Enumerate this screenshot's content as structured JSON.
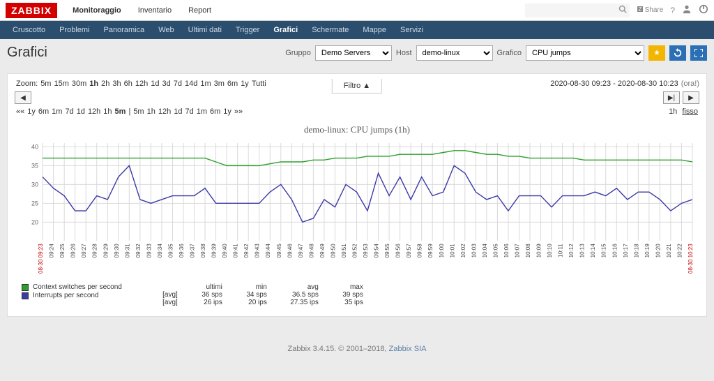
{
  "logo": "ZABBIX",
  "top_menu": [
    "Monitoraggio",
    "Inventario",
    "Report"
  ],
  "top_menu_active": 0,
  "share_label": "Share",
  "sub_menu": [
    "Cruscotto",
    "Problemi",
    "Panoramica",
    "Web",
    "Ultimi dati",
    "Trigger",
    "Grafici",
    "Schermate",
    "Mappe",
    "Servizi"
  ],
  "sub_menu_active": 6,
  "page_title": "Grafici",
  "filters": {
    "group_label": "Gruppo",
    "group_value": "Demo Servers",
    "host_label": "Host",
    "host_value": "demo-linux",
    "graph_label": "Grafico",
    "graph_value": "CPU jumps"
  },
  "filter_tab": "Filtro ▲",
  "zoom": {
    "label": "Zoom:",
    "items": [
      "5m",
      "15m",
      "30m",
      "1h",
      "2h",
      "3h",
      "6h",
      "12h",
      "1d",
      "3d",
      "7d",
      "14d",
      "1m",
      "3m",
      "6m",
      "1y",
      "Tutti"
    ],
    "bold": [
      3
    ],
    "time_range": "2020-08-30 09:23 - 2020-08-30 10:23",
    "time_suffix": "(ora!)"
  },
  "timenav": {
    "left": [
      "««",
      "1y",
      "6m",
      "1m",
      "7d",
      "1d",
      "12h",
      "1h",
      "5m",
      "|",
      "5m",
      "1h",
      "12h",
      "1d",
      "7d",
      "1m",
      "6m",
      "1y",
      "»»"
    ],
    "left_bold": [
      8
    ],
    "right_fixed": [
      "1h",
      "fisso"
    ]
  },
  "chart": {
    "title": "demo-linux: CPU jumps (1h)",
    "yticks": [
      20,
      25,
      30,
      35,
      40
    ],
    "ymin": 15,
    "ymax": 41,
    "xlabels": [
      "08-30 09:23",
      "09:24",
      "09:25",
      "09:26",
      "09:27",
      "09:28",
      "09:29",
      "09:30",
      "09:31",
      "09:32",
      "09:33",
      "09:34",
      "09:35",
      "09:36",
      "09:37",
      "09:38",
      "09:39",
      "09:40",
      "09:41",
      "09:42",
      "09:43",
      "09:44",
      "09:45",
      "09:46",
      "09:47",
      "09:48",
      "09:49",
      "09:50",
      "09:51",
      "09:52",
      "09:53",
      "09:54",
      "09:55",
      "09:56",
      "09:57",
      "09:58",
      "09:59",
      "10:00",
      "10:01",
      "10:02",
      "10:03",
      "10:04",
      "10:05",
      "10:06",
      "10:07",
      "10:08",
      "10:09",
      "10:10",
      "10:11",
      "10:12",
      "10:13",
      "10:14",
      "10:15",
      "10:16",
      "10:17",
      "10:18",
      "10:19",
      "10:20",
      "10:21",
      "10:22",
      "08-30 10:23"
    ],
    "xedge": [
      0,
      60
    ],
    "series_green": [
      37,
      37,
      37,
      37,
      37,
      37,
      37,
      37,
      37,
      37,
      37,
      37,
      37,
      37,
      37,
      37,
      36,
      35,
      35,
      35,
      35,
      35.5,
      36,
      36,
      36,
      36.5,
      36.5,
      37,
      37,
      37,
      37.5,
      37.5,
      37.5,
      38,
      38,
      38,
      38,
      38.5,
      39,
      39,
      38.5,
      38,
      38,
      37.5,
      37.5,
      37,
      37,
      37,
      37,
      37,
      36.5,
      36.5,
      36.5,
      36.5,
      36.5,
      36.5,
      36.5,
      36.5,
      36.5,
      36.5,
      36
    ],
    "series_blue": [
      32,
      29,
      27,
      23,
      23,
      27,
      26,
      32,
      35,
      26,
      25,
      26,
      27,
      27,
      27,
      29,
      25,
      25,
      25,
      25,
      25,
      28,
      30,
      26,
      20,
      21,
      26,
      24,
      30,
      28,
      23,
      33,
      27,
      32,
      26,
      32,
      27,
      28,
      35,
      33,
      28,
      26,
      27,
      23,
      27,
      27,
      27,
      24,
      27,
      27,
      27,
      28,
      27,
      29,
      26,
      28,
      28,
      26,
      23,
      25,
      26
    ]
  },
  "legend": {
    "items": [
      {
        "name": "Context switches per second",
        "color": "lg",
        "agg": "[avg]",
        "ultimi": "36 sps",
        "min": "34 sps",
        "avg": "36.5 sps",
        "max": "39 sps"
      },
      {
        "name": "Interrupts per second",
        "color": "lb",
        "agg": "[avg]",
        "ultimi": "26 ips",
        "min": "20 ips",
        "avg": "27.35 ips",
        "max": "35 ips"
      }
    ],
    "hdr": {
      "ultimi": "ultimi",
      "min": "min",
      "avg": "avg",
      "max": "max"
    }
  },
  "footer": {
    "text": "Zabbix 3.4.15. © 2001–2018, ",
    "link": "Zabbix SIA"
  }
}
